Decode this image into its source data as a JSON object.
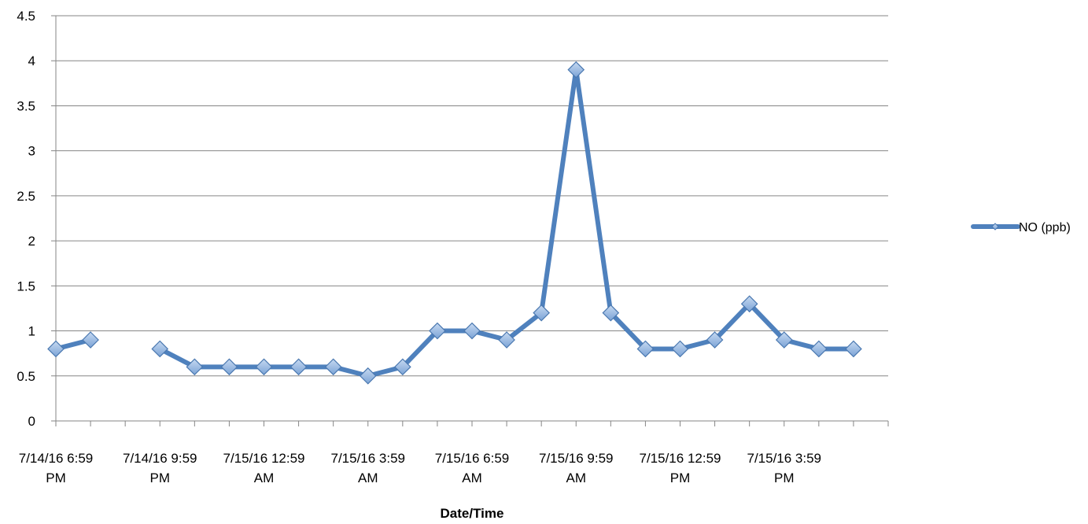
{
  "chart_data": {
    "type": "line",
    "xlabel": "Date/Time",
    "ylabel": "",
    "ylim": [
      0,
      4.5
    ],
    "yticks": [
      "0",
      "0.5",
      "1",
      "1.5",
      "2",
      "2.5",
      "3",
      "3.5",
      "4",
      "4.5"
    ],
    "grid": "horizontal",
    "legend_position": "right",
    "x_tick_labels": [
      {
        "index": 0,
        "lines": [
          "7/14/16 6:59",
          "PM"
        ]
      },
      {
        "index": 3,
        "lines": [
          "7/14/16 9:59",
          "PM"
        ]
      },
      {
        "index": 6,
        "lines": [
          "7/15/16 12:59",
          "AM"
        ]
      },
      {
        "index": 9,
        "lines": [
          "7/15/16 3:59",
          "AM"
        ]
      },
      {
        "index": 12,
        "lines": [
          "7/15/16 6:59",
          "AM"
        ]
      },
      {
        "index": 15,
        "lines": [
          "7/15/16 9:59",
          "AM"
        ]
      },
      {
        "index": 18,
        "lines": [
          "7/15/16 12:59",
          "PM"
        ]
      },
      {
        "index": 21,
        "lines": [
          "7/15/16 3:59",
          "PM"
        ]
      }
    ],
    "series": [
      {
        "name": "NO (ppb)",
        "color": "#4f81bd",
        "values": [
          0.8,
          0.9,
          null,
          0.8,
          0.6,
          0.6,
          0.6,
          0.6,
          0.6,
          0.5,
          0.6,
          1.0,
          1.0,
          0.9,
          1.2,
          3.9,
          1.2,
          0.8,
          0.8,
          0.9,
          1.3,
          0.9,
          0.8,
          0.8
        ]
      }
    ]
  }
}
